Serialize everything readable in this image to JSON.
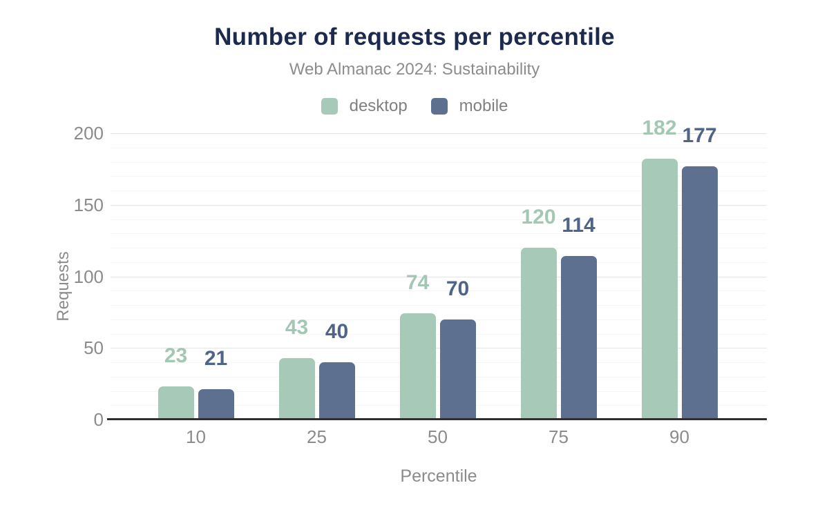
{
  "header": {
    "title": "Number of requests per percentile",
    "subtitle": "Web Almanac 2024: Sustainability"
  },
  "colors": {
    "title_text": "#1c2b4d",
    "muted_text": "#8b8b8b",
    "axis_line": "#2f2f2f",
    "gridline_major": "#e4e4e4",
    "gridline_minor": "#f5f5f5",
    "desktop": "#a7cab8",
    "mobile": "#5e7090"
  },
  "chart_data": {
    "type": "bar",
    "title": "Number of requests per percentile",
    "subtitle": "Web Almanac 2024: Sustainability",
    "categories": [
      "10",
      "25",
      "50",
      "75",
      "90"
    ],
    "series": [
      {
        "name": "desktop",
        "color": "#a7cab8",
        "label_color": "#a2c8b3",
        "values": [
          23,
          43,
          74,
          120,
          182
        ]
      },
      {
        "name": "mobile",
        "color": "#5e7090",
        "label_color": "#4f6488",
        "values": [
          21,
          40,
          70,
          114,
          177
        ]
      }
    ],
    "xlabel": "Percentile",
    "ylabel": "Requests",
    "ylim": [
      0,
      200
    ],
    "yticks": [
      0,
      50,
      100,
      150,
      200
    ],
    "minor_step": 10,
    "major_step": 50,
    "grid": "horizontal-only",
    "legend_position": "top",
    "bar_value_labels": true
  }
}
